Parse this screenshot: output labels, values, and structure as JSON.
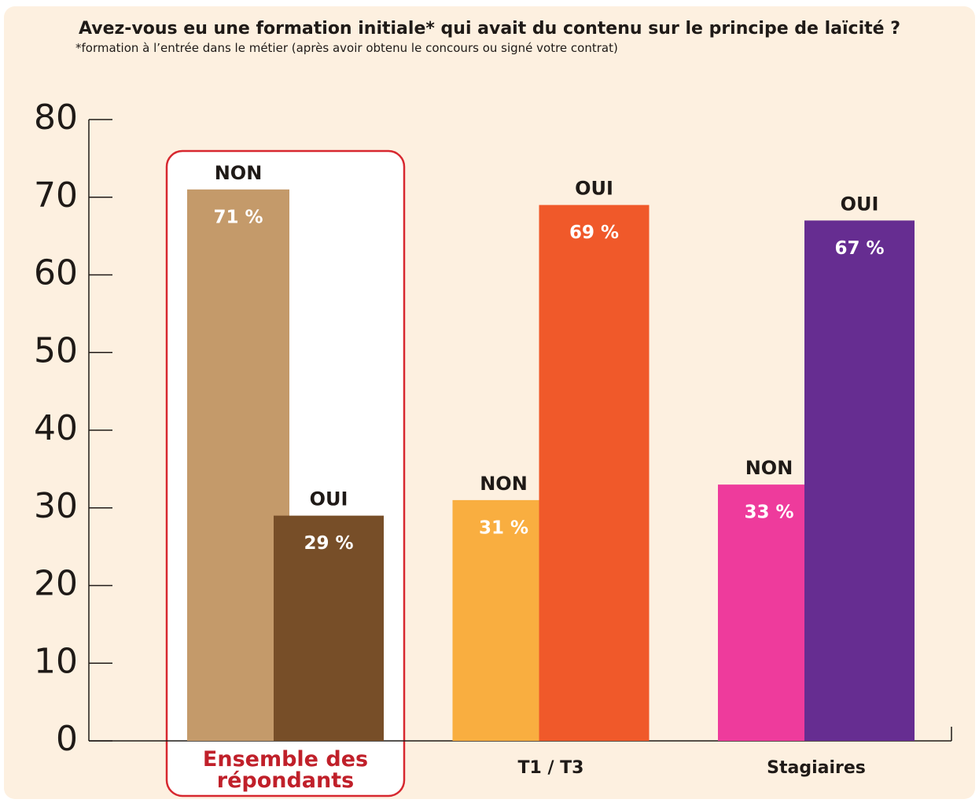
{
  "chart_data": {
    "type": "bar",
    "title": "Avez-vous eu une formation initiale* qui avait du contenu sur le principe de laïcité ?",
    "subtitle": "*formation à l’entrée dans le métier (après avoir obtenu le concours ou signé votre contrat)",
    "categories": [
      "Ensemble des répondants",
      "T1 / T3",
      "Stagiaires"
    ],
    "series": [
      {
        "name": "NON",
        "colors": [
          "#c49a6a",
          "#f9ae40",
          "#ee3b9c"
        ],
        "values": [
          71,
          31,
          33
        ],
        "value_labels": [
          "71 %",
          "31 %",
          "33 %"
        ]
      },
      {
        "name": "OUI",
        "colors": [
          "#774e28",
          "#f0592a",
          "#662d91"
        ],
        "values": [
          29,
          69,
          67
        ],
        "value_labels": [
          "29 %",
          "69 %",
          "67 %"
        ]
      }
    ],
    "ylim": [
      0,
      80
    ],
    "yticks": [
      0,
      10,
      20,
      30,
      40,
      50,
      60,
      70,
      80
    ],
    "highlight": 0
  }
}
